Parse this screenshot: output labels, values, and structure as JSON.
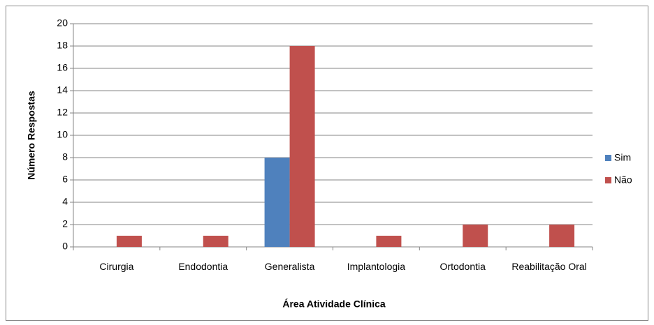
{
  "chart_data": {
    "type": "bar",
    "categories": [
      "Cirurgia",
      "Endodontia",
      "Generalista",
      "Implantologia",
      "Ortodontia",
      "Reabilitação Oral"
    ],
    "series": [
      {
        "name": "Sim",
        "color": "#4f81bd",
        "values": [
          0,
          0,
          8,
          0,
          0,
          0
        ]
      },
      {
        "name": "Não",
        "color": "#c0504d",
        "values": [
          1,
          1,
          18,
          1,
          2,
          2
        ]
      }
    ],
    "ylim": [
      0,
      20
    ],
    "yticks": [
      0,
      2,
      4,
      6,
      8,
      10,
      12,
      14,
      16,
      18,
      20
    ],
    "grid": true,
    "x_label": "Área Atividade Clínica",
    "y_label": "Número Respostas",
    "legend": "right"
  }
}
